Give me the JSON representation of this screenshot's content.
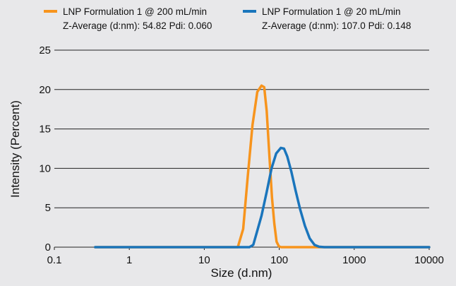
{
  "chart_data": {
    "type": "line",
    "xlabel": "Size (d.nm)",
    "ylabel": "Intensity (Percent)",
    "xscale": "log",
    "xlim": [
      0.1,
      10000
    ],
    "ylim": [
      0,
      25
    ],
    "x_ticks": [
      {
        "value": 0.1,
        "label": "0.1"
      },
      {
        "value": 1,
        "label": "1"
      },
      {
        "value": 10,
        "label": "10"
      },
      {
        "value": 100,
        "label": "100"
      },
      {
        "value": 1000,
        "label": "1000"
      },
      {
        "value": 10000,
        "label": "10000"
      }
    ],
    "y_ticks": [
      {
        "value": 0,
        "label": "0"
      },
      {
        "value": 5,
        "label": "5"
      },
      {
        "value": 10,
        "label": "10"
      },
      {
        "value": 15,
        "label": "15"
      },
      {
        "value": 20,
        "label": "20"
      },
      {
        "value": 25,
        "label": "25"
      }
    ],
    "grid": "horizontal",
    "legend_position": "top",
    "series": [
      {
        "name": "LNP Formulation 1 @ 200 mL/min",
        "subtitle": "Z-Average (d:nm): 54.82  Pdi: 0.060",
        "color": "#f7941d",
        "x": [
          0.35,
          10,
          28,
          33,
          38,
          44,
          51,
          58,
          63,
          68,
          74,
          80,
          86,
          92,
          99,
          106,
          115,
          150,
          10000
        ],
        "y": [
          0,
          0,
          0,
          2.3,
          9.0,
          15.5,
          19.7,
          20.5,
          20.3,
          17.3,
          11.5,
          6.3,
          3.0,
          0.7,
          0.1,
          0,
          0,
          0,
          0
        ]
      },
      {
        "name": "LNP Formulation 1 @ 20 mL/min",
        "subtitle": "Z-Average (d:nm): 107.0  Pdi: 0.148",
        "color": "#1a75bc",
        "x": [
          0.35,
          30,
          40,
          45,
          50,
          58,
          68,
          79,
          91,
          105,
          116,
          128,
          145,
          165,
          190,
          220,
          255,
          295,
          340,
          400,
          10000
        ],
        "y": [
          0,
          0,
          0,
          0.3,
          1.8,
          4.0,
          7.0,
          10.0,
          11.9,
          12.6,
          12.5,
          11.5,
          9.6,
          7.2,
          4.8,
          2.7,
          1.1,
          0.3,
          0.05,
          0,
          0
        ]
      }
    ]
  }
}
